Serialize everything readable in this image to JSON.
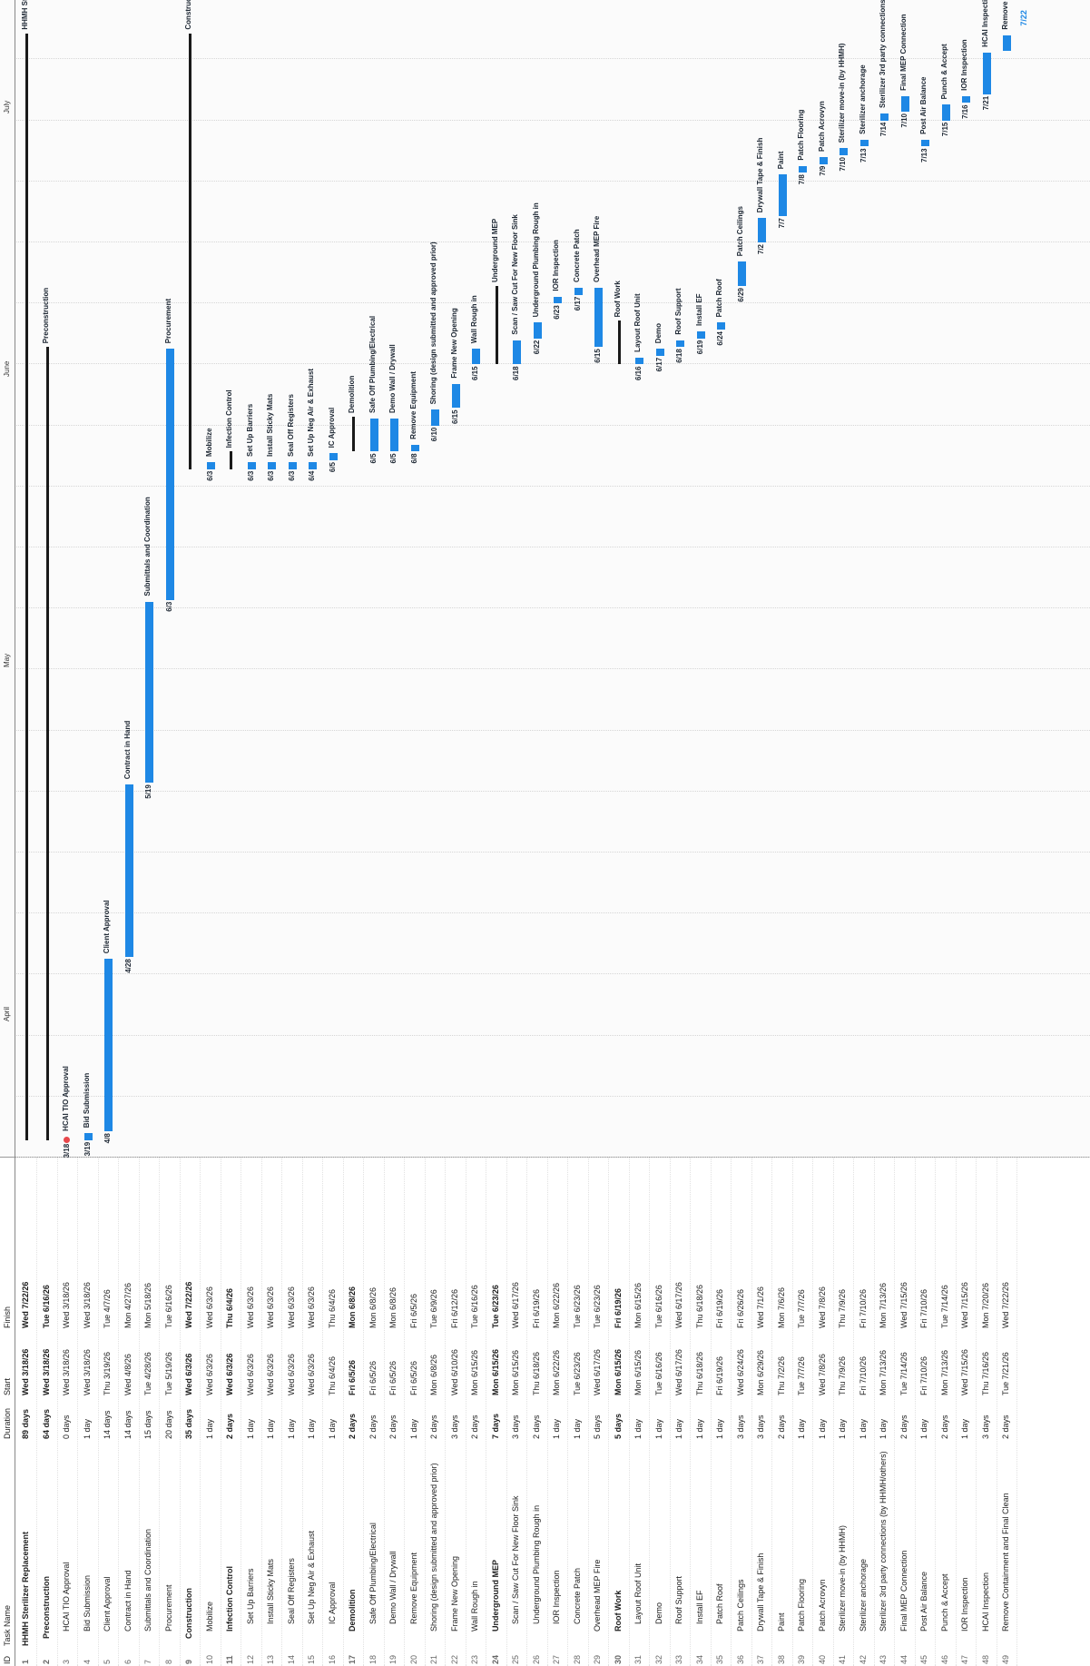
{
  "columns": {
    "id": "ID",
    "name": "Task Name",
    "duration": "Duration",
    "start": "Start",
    "finish": "Finish"
  },
  "timescale": [
    "April",
    "May",
    "June",
    "July"
  ],
  "rows": [
    {
      "id": "1",
      "name": "HHMH Sterilizer Replacement",
      "duration": "89 days",
      "start": "Wed 3/18/26",
      "finish": "Wed 7/22/26",
      "summary": true
    },
    {
      "id": "2",
      "name": "Preconstruction",
      "duration": "64 days",
      "start": "Wed 3/18/26",
      "finish": "Tue 6/16/26",
      "summary": true
    },
    {
      "id": "3",
      "name": "HCAI TIO Approval",
      "duration": "0 days",
      "start": "Wed 3/18/26",
      "finish": "Wed 3/18/26"
    },
    {
      "id": "4",
      "name": "Bid Submission",
      "duration": "1 day",
      "start": "Wed 3/18/26",
      "finish": "Wed 3/18/26"
    },
    {
      "id": "5",
      "name": "Client Approval",
      "duration": "14 days",
      "start": "Thu 3/19/26",
      "finish": "Tue 4/7/26"
    },
    {
      "id": "6",
      "name": "Contract in Hand",
      "duration": "14 days",
      "start": "Wed 4/8/26",
      "finish": "Mon 4/27/26"
    },
    {
      "id": "7",
      "name": "Submittals and Coordination",
      "duration": "15 days",
      "start": "Tue 4/28/26",
      "finish": "Mon 5/18/26"
    },
    {
      "id": "8",
      "name": "Procurement",
      "duration": "20 days",
      "start": "Tue 5/19/26",
      "finish": "Tue 6/16/26"
    },
    {
      "id": "9",
      "name": "Construction",
      "duration": "35 days",
      "start": "Wed 6/3/26",
      "finish": "Wed 7/22/26",
      "summary": true
    },
    {
      "id": "10",
      "name": "Mobilize",
      "duration": "1 day",
      "start": "Wed 6/3/26",
      "finish": "Wed 6/3/26"
    },
    {
      "id": "11",
      "name": "Infection Control",
      "duration": "2 days",
      "start": "Wed 6/3/26",
      "finish": "Thu 6/4/26",
      "summary": true
    },
    {
      "id": "12",
      "name": "Set Up Barriers",
      "duration": "1 day",
      "start": "Wed 6/3/26",
      "finish": "Wed 6/3/26"
    },
    {
      "id": "13",
      "name": "Install Sticky Mats",
      "duration": "1 day",
      "start": "Wed 6/3/26",
      "finish": "Wed 6/3/26"
    },
    {
      "id": "14",
      "name": "Seal Off Registers",
      "duration": "1 day",
      "start": "Wed 6/3/26",
      "finish": "Wed 6/3/26"
    },
    {
      "id": "15",
      "name": "Set Up Neg Air & Exhaust",
      "duration": "1 day",
      "start": "Wed 6/3/26",
      "finish": "Wed 6/3/26"
    },
    {
      "id": "16",
      "name": "IC Approval",
      "duration": "1 day",
      "start": "Thu 6/4/26",
      "finish": "Thu 6/4/26"
    },
    {
      "id": "17",
      "name": "Demolition",
      "duration": "2 days",
      "start": "Fri 6/5/26",
      "finish": "Mon 6/8/26",
      "summary": true
    },
    {
      "id": "18",
      "name": "Safe Off Plumbing/Electrical",
      "duration": "2 days",
      "start": "Fri 6/5/26",
      "finish": "Mon 6/8/26"
    },
    {
      "id": "19",
      "name": "Demo Wall / Drywall",
      "duration": "2 days",
      "start": "Fri 6/5/26",
      "finish": "Mon 6/8/26"
    },
    {
      "id": "20",
      "name": "Remove Equipment",
      "duration": "1 day",
      "start": "Fri 6/5/26",
      "finish": "Fri 6/5/26"
    },
    {
      "id": "21",
      "name": "Shoring (design submitted and approved prior)",
      "duration": "2 days",
      "start": "Mon 6/8/26",
      "finish": "Tue 6/9/26"
    },
    {
      "id": "22",
      "name": "Frame New Opening",
      "duration": "3 days",
      "start": "Wed 6/10/26",
      "finish": "Fri 6/12/26"
    },
    {
      "id": "23",
      "name": "Wall Rough in",
      "duration": "2 days",
      "start": "Mon 6/15/26",
      "finish": "Tue 6/16/26"
    },
    {
      "id": "24",
      "name": "Underground MEP",
      "duration": "7 days",
      "start": "Mon 6/15/26",
      "finish": "Tue 6/23/26",
      "summary": true
    },
    {
      "id": "25",
      "name": "Scan / Saw Cut For New Floor Sink",
      "duration": "3 days",
      "start": "Mon 6/15/26",
      "finish": "Wed 6/17/26"
    },
    {
      "id": "26",
      "name": "Underground Plumbing Rough in",
      "duration": "2 days",
      "start": "Thu 6/18/26",
      "finish": "Fri 6/19/26"
    },
    {
      "id": "27",
      "name": "IOR Inspection",
      "duration": "1 day",
      "start": "Mon 6/22/26",
      "finish": "Mon 6/22/26"
    },
    {
      "id": "28",
      "name": "Concrete Patch",
      "duration": "1 day",
      "start": "Tue 6/23/26",
      "finish": "Tue 6/23/26"
    },
    {
      "id": "29",
      "name": "Overhead MEP Fire",
      "duration": "5 days",
      "start": "Wed 6/17/26",
      "finish": "Tue 6/23/26"
    },
    {
      "id": "30",
      "name": "Roof Work",
      "duration": "5 days",
      "start": "Mon 6/15/26",
      "finish": "Fri 6/19/26",
      "summary": true
    },
    {
      "id": "31",
      "name": "Layout Roof Unit",
      "duration": "1 day",
      "start": "Mon 6/15/26",
      "finish": "Mon 6/15/26"
    },
    {
      "id": "32",
      "name": "Demo",
      "duration": "1 day",
      "start": "Tue 6/16/26",
      "finish": "Tue 6/16/26"
    },
    {
      "id": "33",
      "name": "Roof Support",
      "duration": "1 day",
      "start": "Wed 6/17/26",
      "finish": "Wed 6/17/26"
    },
    {
      "id": "34",
      "name": "Install EF",
      "duration": "1 day",
      "start": "Thu 6/18/26",
      "finish": "Thu 6/18/26"
    },
    {
      "id": "35",
      "name": "Patch Roof",
      "duration": "1 day",
      "start": "Fri 6/19/26",
      "finish": "Fri 6/19/26"
    },
    {
      "id": "36",
      "name": "Patch Ceilings",
      "duration": "3 days",
      "start": "Wed 6/24/26",
      "finish": "Fri 6/26/26"
    },
    {
      "id": "37",
      "name": "Drywall Tape & Finish",
      "duration": "3 days",
      "start": "Mon 6/29/26",
      "finish": "Wed 7/1/26"
    },
    {
      "id": "38",
      "name": "Paint",
      "duration": "2 days",
      "start": "Thu 7/2/26",
      "finish": "Mon 7/6/26"
    },
    {
      "id": "39",
      "name": "Patch Flooring",
      "duration": "1 day",
      "start": "Tue 7/7/26",
      "finish": "Tue 7/7/26"
    },
    {
      "id": "40",
      "name": "Patch Acrovyn",
      "duration": "1 day",
      "start": "Wed 7/8/26",
      "finish": "Wed 7/8/26"
    },
    {
      "id": "41",
      "name": "Sterilizer move-in (by HHMH)",
      "duration": "1 day",
      "start": "Thu 7/9/26",
      "finish": "Thu 7/9/26"
    },
    {
      "id": "42",
      "name": "Sterilizer anchorage",
      "duration": "1 day",
      "start": "Fri 7/10/26",
      "finish": "Fri 7/10/26"
    },
    {
      "id": "43",
      "name": "Sterilizer 3rd party connections (by HHMH/others)",
      "duration": "1 day",
      "start": "Mon 7/13/26",
      "finish": "Mon 7/13/26"
    },
    {
      "id": "44",
      "name": "Final MEP Connection",
      "duration": "2 days",
      "start": "Tue 7/14/26",
      "finish": "Wed 7/15/26"
    },
    {
      "id": "45",
      "name": "Post Air Balance",
      "duration": "1 day",
      "start": "Fri 7/10/26",
      "finish": "Fri 7/10/26"
    },
    {
      "id": "46",
      "name": "Punch & Accept",
      "duration": "2 days",
      "start": "Mon 7/13/26",
      "finish": "Tue 7/14/26"
    },
    {
      "id": "47",
      "name": "IOR Inspection",
      "duration": "1 day",
      "start": "Wed 7/15/26",
      "finish": "Wed 7/15/26"
    },
    {
      "id": "48",
      "name": "HCAI Inspection",
      "duration": "3 days",
      "start": "Thu 7/16/26",
      "finish": "Mon 7/20/26"
    },
    {
      "id": "49",
      "name": "Remove Containment and Final Clean",
      "duration": "2 days",
      "start": "Tue 7/21/26",
      "finish": "Wed 7/22/26"
    }
  ],
  "bar_labels": {
    "start_dates": [
      "3/18",
      "3/19",
      "4/8",
      "4/28",
      "5/19",
      "6/3",
      "6/3",
      "6/3",
      "6/3",
      "6/3",
      "6/4",
      "6/5",
      "6/5",
      "6/5",
      "6/8",
      "6/10",
      "6/15",
      "6/15",
      "6/18",
      "6/22",
      "6/23",
      "6/17",
      "6/15",
      "6/16",
      "6/17",
      "6/18",
      "6/19",
      "6/24",
      "6/29",
      "7/2",
      "7/7",
      "7/8",
      "7/9",
      "7/10",
      "7/13",
      "7/14",
      "7/10",
      "7/13",
      "7/15",
      "7/16",
      "7/21"
    ],
    "end_marker": "7/22"
  },
  "colors": {
    "bar": "#1e88e5",
    "summary": "#1a1a1a",
    "milestone": "#e8474b"
  }
}
